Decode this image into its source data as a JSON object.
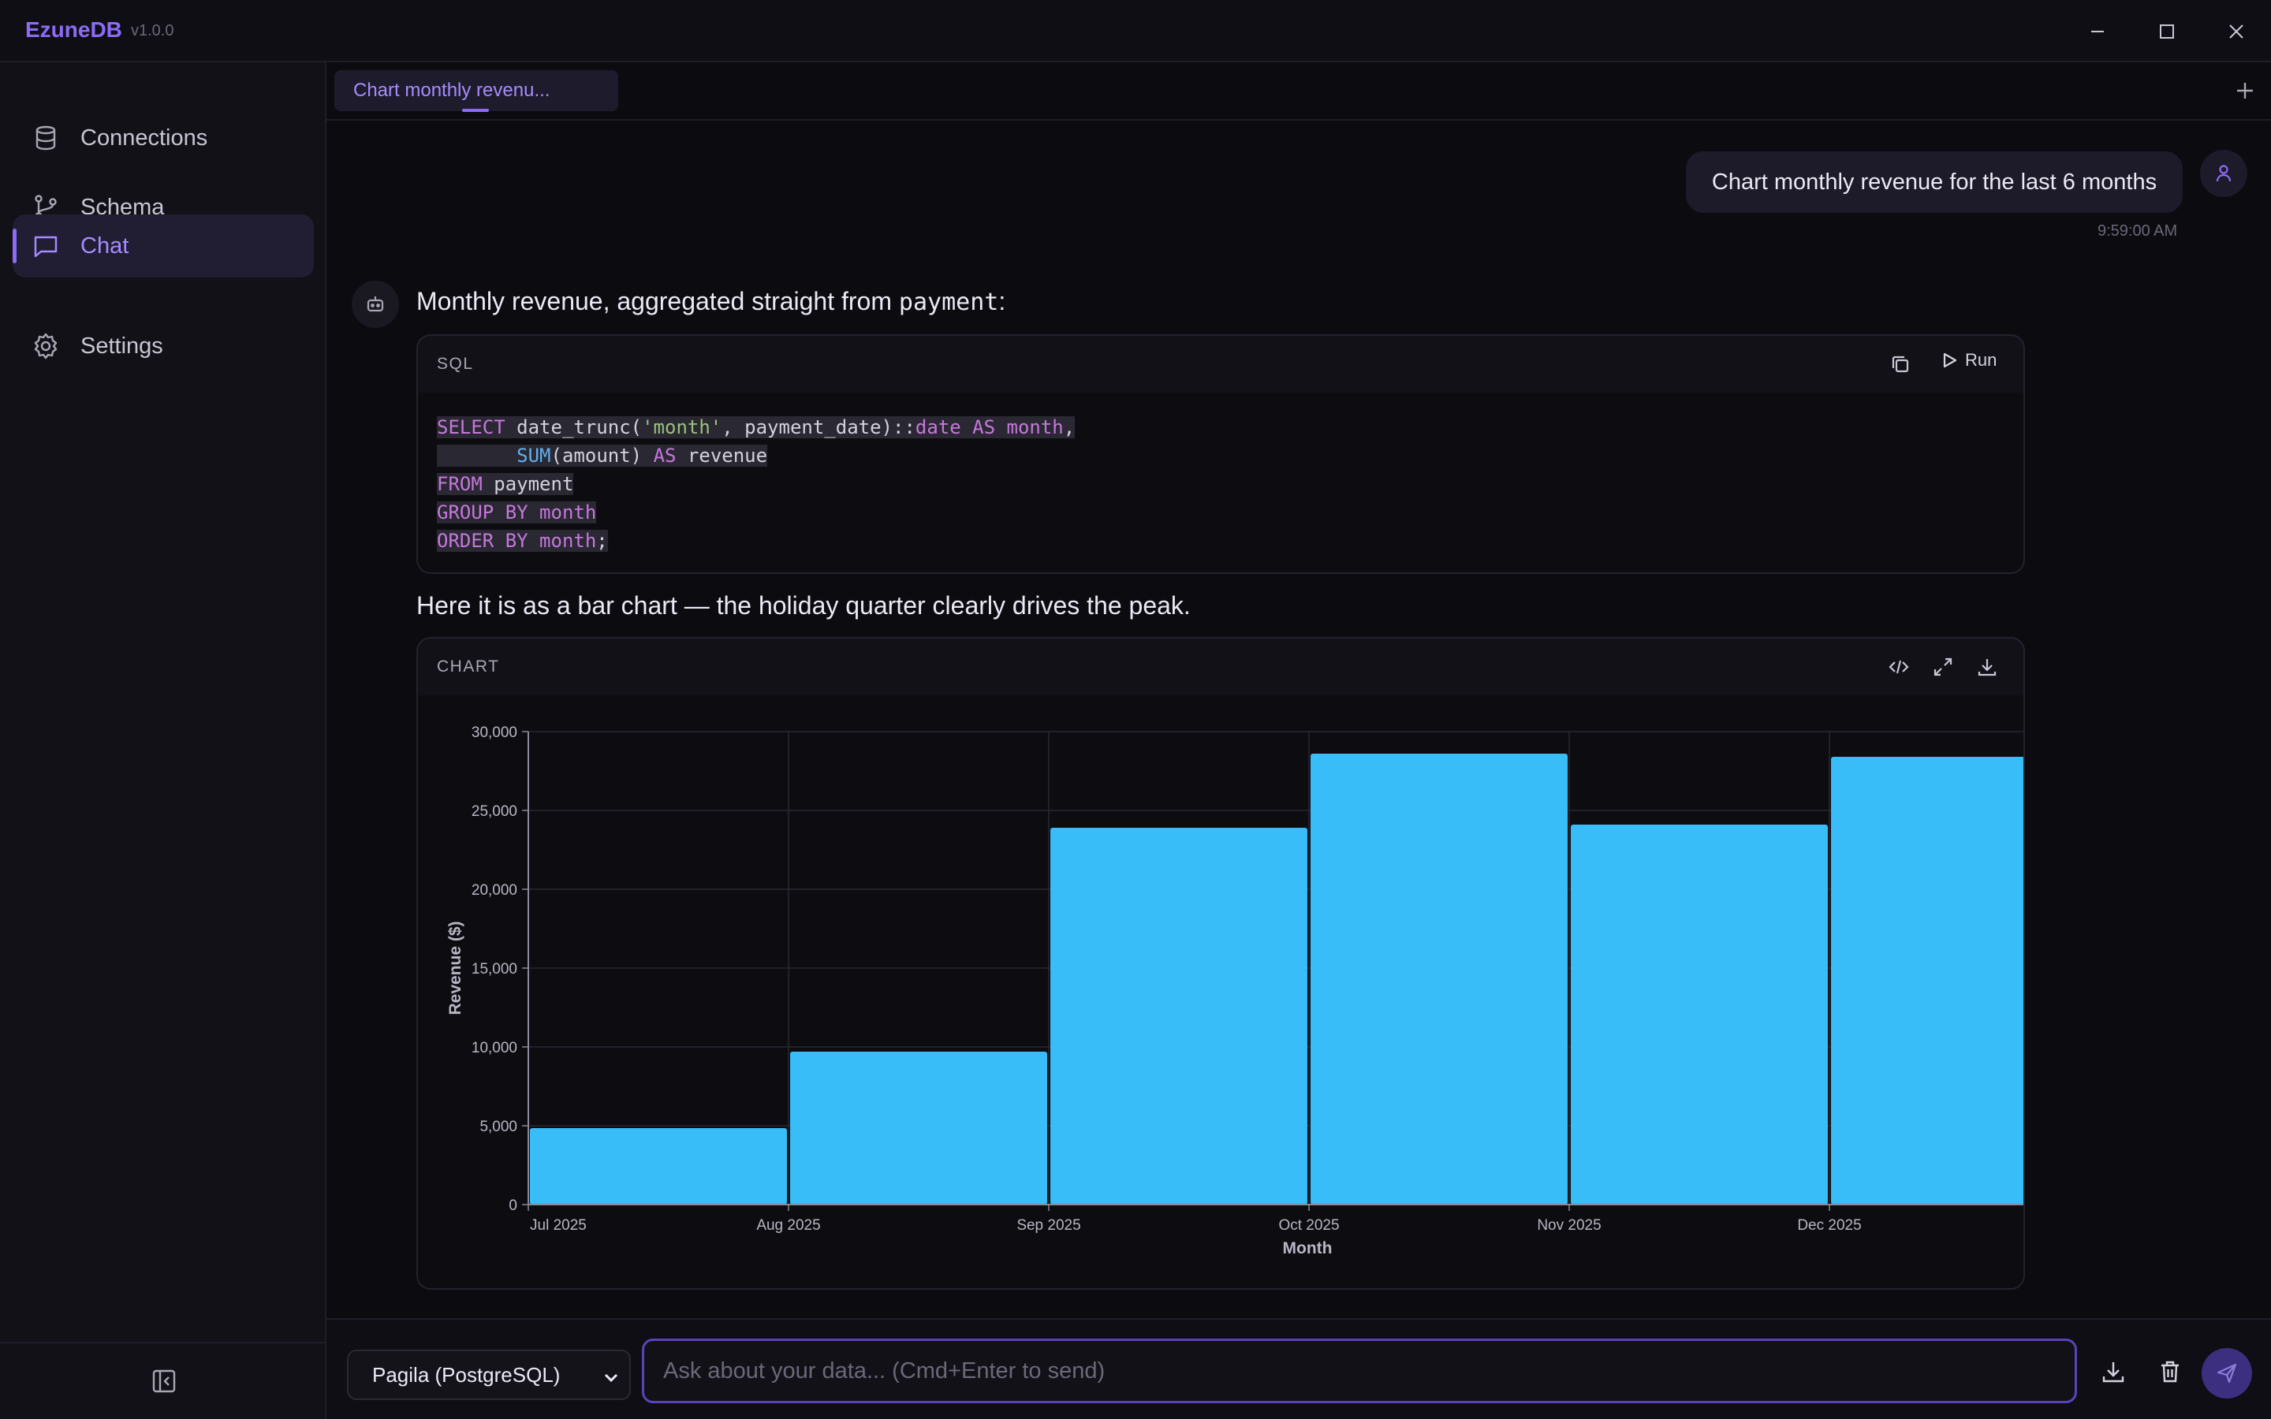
{
  "app": {
    "name": "EzuneDB",
    "version": "v1.0.0"
  },
  "sidebar": {
    "items": [
      {
        "label": "Connections",
        "icon": "database-icon"
      },
      {
        "label": "Schema",
        "icon": "git-branch-icon"
      },
      {
        "label": "Chat",
        "icon": "chat-icon",
        "active": true
      },
      {
        "label": "Settings",
        "icon": "gear-icon"
      }
    ]
  },
  "tabs": [
    {
      "label": "Chart monthly revenu..."
    }
  ],
  "conversation": {
    "user_message": "Chart monthly revenue for the last 6 months",
    "user_timestamp": "9:59:00 AM",
    "assistant_intro_prefix": "Monthly revenue, aggregated straight from ",
    "assistant_intro_code": "payment",
    "assistant_intro_suffix": ":",
    "sql_block": {
      "label": "SQL",
      "run_label": "Run",
      "lines": [
        [
          [
            "kw",
            "SELECT"
          ],
          [
            "pl",
            " date_trunc("
          ],
          [
            "str",
            "'month'"
          ],
          [
            "pl",
            ", payment_date)::"
          ],
          [
            "kw",
            "date"
          ],
          [
            "pl",
            " "
          ],
          [
            "kw",
            "AS"
          ],
          [
            "pl",
            " "
          ],
          [
            "kw",
            "month"
          ],
          [
            "pl",
            ","
          ]
        ],
        [
          [
            "pl",
            "       "
          ],
          [
            "fn",
            "SUM"
          ],
          [
            "pl",
            "(amount) "
          ],
          [
            "kw",
            "AS"
          ],
          [
            "pl",
            " revenue"
          ]
        ],
        [
          [
            "kw",
            "FROM"
          ],
          [
            "pl",
            " payment"
          ]
        ],
        [
          [
            "kw",
            "GROUP BY"
          ],
          [
            "pl",
            " "
          ],
          [
            "kw",
            "month"
          ]
        ],
        [
          [
            "kw",
            "ORDER BY"
          ],
          [
            "pl",
            " "
          ],
          [
            "kw",
            "month"
          ],
          [
            "pl",
            ";"
          ]
        ]
      ]
    },
    "assistant_followup": "Here it is as a bar chart — the holiday quarter clearly drives the peak.",
    "chart_block": {
      "label": "CHART"
    }
  },
  "chart_data": {
    "type": "bar",
    "categories": [
      "Jul 2025",
      "Aug 2025",
      "Sep 2025",
      "Oct 2025",
      "Nov 2025",
      "Dec 2025"
    ],
    "values": [
      4850,
      9700,
      23900,
      28600,
      24100,
      28400
    ],
    "xlabel": "Month",
    "ylabel": "Revenue ($)",
    "ylim": [
      0,
      30000
    ],
    "yticks": [
      0,
      5000,
      10000,
      15000,
      20000,
      25000,
      30000
    ],
    "ytick_labels": [
      "0",
      "5,000",
      "10,000",
      "15,000",
      "20,000",
      "25,000",
      "30,000"
    ],
    "grid": true,
    "bar_color": "#38bdf8"
  },
  "footer": {
    "db_select": "Pagila (PostgreSQL)",
    "input_placeholder": "Ask about your data... (Cmd+Enter to send)"
  },
  "colors": {
    "accent": "#8b6cf6",
    "background": "#0c0b10"
  }
}
